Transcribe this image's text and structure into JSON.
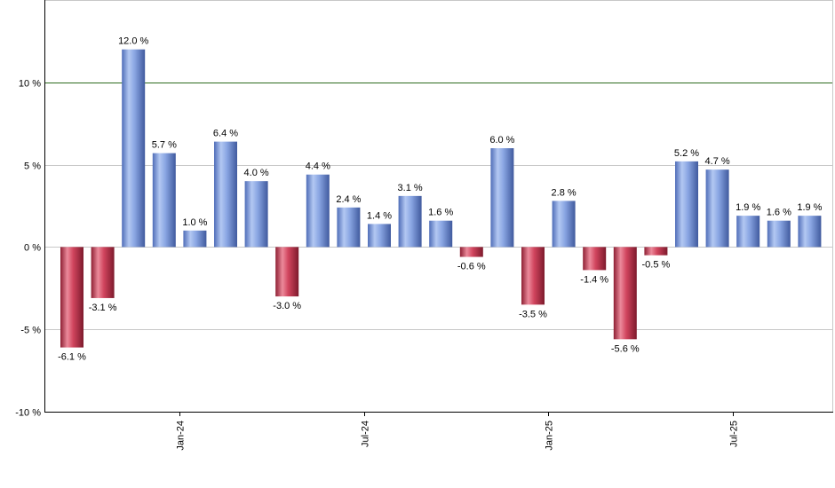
{
  "chart_data": {
    "type": "bar",
    "title": "",
    "xlabel": "",
    "ylabel": "",
    "ylim": [
      -10,
      15
    ],
    "y_ticks": [
      {
        "value": -10,
        "label": "-10 %"
      },
      {
        "value": -5,
        "label": "-5 %"
      },
      {
        "value": 0,
        "label": "0 %"
      },
      {
        "value": 5,
        "label": "5 %"
      },
      {
        "value": 10,
        "label": "10 %"
      }
    ],
    "reference_line": {
      "value": 10,
      "color": "#2e6b1f"
    },
    "x_ticks": [
      {
        "index": 4,
        "label": "Jan-24"
      },
      {
        "index": 10,
        "label": "Jul-24"
      },
      {
        "index": 16,
        "label": "Jan-25"
      },
      {
        "index": 22,
        "label": "Jul-25"
      }
    ],
    "values": [
      -6.1,
      -3.1,
      12.0,
      5.7,
      1.0,
      6.4,
      4.0,
      -3.0,
      4.4,
      2.4,
      1.4,
      3.1,
      1.6,
      -0.6,
      6.0,
      -3.5,
      2.8,
      -1.4,
      -5.6,
      -0.5,
      5.2,
      4.7,
      1.9,
      1.6,
      1.9
    ],
    "labels": [
      "-6.1 %",
      "-3.1 %",
      "12.0 %",
      "5.7 %",
      "1.0 %",
      "6.4 %",
      "4.0 %",
      "-3.0 %",
      "4.4 %",
      "2.4 %",
      "1.4 %",
      "3.1 %",
      "1.6 %",
      "-0.6 %",
      "6.0 %",
      "-3.5 %",
      "2.8 %",
      "-1.4 %",
      "-5.6 %",
      "-0.5 %",
      "5.2 %",
      "4.7 %",
      "1.9 %",
      "1.6 %",
      "1.9 %"
    ],
    "colors": {
      "positive": "#7f9fdf",
      "negative": "#c8354e",
      "grid": "#c8c8c8",
      "axis": "#000000"
    },
    "grid": true
  }
}
